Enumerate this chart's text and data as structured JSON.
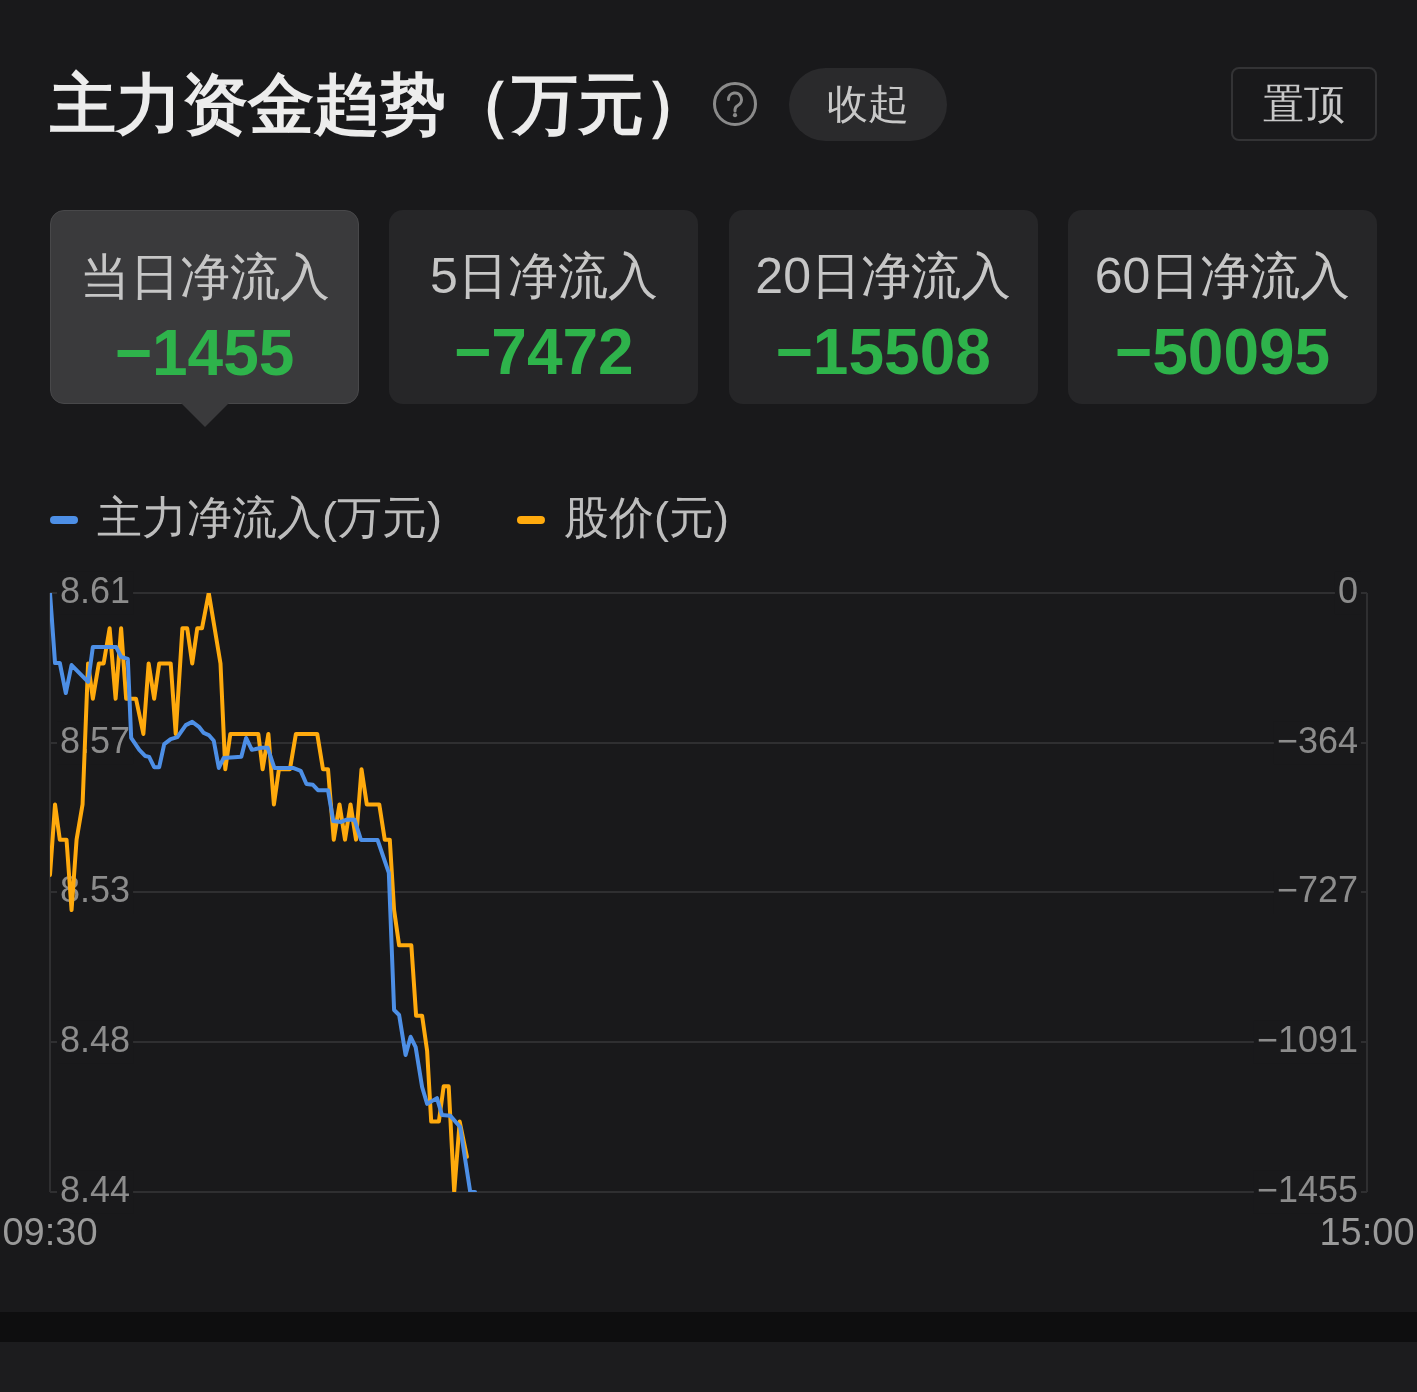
{
  "chart_data": [
    {
      "type": "other",
      "title": "主力资金趋势（万元）",
      "categories": [
        "当日净流入",
        "5日净流入",
        "20日净流入",
        "60日净流入"
      ],
      "values": [
        -1455,
        -7472,
        -15508,
        -50095
      ],
      "data_labels": true,
      "annotations": [
        "收起",
        "置顶"
      ]
    },
    {
      "type": "line",
      "series": [
        {
          "name": "主力净流入(万元)",
          "color": "#4d8fe6",
          "axis": "y2",
          "x": [
            9.5,
            9.521,
            9.541,
            9.566,
            9.59,
            9.659,
            9.679,
            9.776,
            9.797,
            9.825,
            9.839,
            9.873,
            9.898,
            9.914,
            9.935,
            9.956,
            9.977,
            10.004,
            10.032,
            10.067,
            10.094,
            10.122,
            10.142,
            10.163,
            10.184,
            10.205,
            10.225,
            10.299,
            10.319,
            10.343,
            10.384,
            10.409,
            10.437,
            10.515,
            10.547,
            10.571,
            10.598,
            10.619,
            10.661,
            10.683,
            10.716,
            10.736,
            10.772,
            10.799,
            10.868,
            10.915,
            10.937,
            10.958,
            10.985,
            11.006,
            11.027,
            11.054,
            11.075,
            11.116,
            11.137,
            11.172,
            11.213,
            11.255,
            11.275
          ],
          "values": [
            0,
            -170,
            -170,
            -243,
            -175,
            -216,
            -131,
            -131,
            -155,
            -160,
            -352,
            -381,
            -396,
            -398,
            -423,
            -423,
            -367,
            -355,
            -350,
            -321,
            -313,
            -325,
            -340,
            -345,
            -359,
            -425,
            -401,
            -398,
            -352,
            -381,
            -376,
            -376,
            -425,
            -425,
            -432,
            -464,
            -466,
            -479,
            -479,
            -554,
            -556,
            -551,
            -551,
            -600,
            -600,
            -680,
            -1013,
            -1025,
            -1122,
            -1078,
            -1103,
            -1200,
            -1241,
            -1227,
            -1268,
            -1270,
            -1297,
            -1455,
            -1455
          ]
        },
        {
          "name": "股价(元)",
          "color": "#ffaa0d",
          "x": [
            9.5,
            9.521,
            9.541,
            9.569,
            9.59,
            9.611,
            9.636,
            9.659,
            9.679,
            9.704,
            9.724,
            9.749,
            9.774,
            9.797,
            9.818,
            9.859,
            9.89,
            9.912,
            9.935,
            9.956,
            10.004,
            10.025,
            10.053,
            10.073,
            10.094,
            10.115,
            10.135,
            10.163,
            10.212,
            10.232,
            10.253,
            10.37,
            10.388,
            10.412,
            10.435,
            10.456,
            10.502,
            10.527,
            10.616,
            10.64,
            10.661,
            10.685,
            10.709,
            10.732,
            10.755,
            10.778,
            10.801,
            10.823,
            10.875,
            10.898,
            10.919,
            10.937,
            10.958,
            11.009,
            11.029,
            11.054,
            11.075,
            11.092,
            11.124,
            11.144,
            11.165,
            11.188,
            11.211,
            11.241
          ],
          "values": [
            8.53,
            8.55,
            8.54,
            8.54,
            8.52,
            8.54,
            8.55,
            8.59,
            8.58,
            8.59,
            8.59,
            8.6,
            8.58,
            8.6,
            8.58,
            8.58,
            8.57,
            8.59,
            8.58,
            8.59,
            8.59,
            8.57,
            8.6,
            8.6,
            8.59,
            8.6,
            8.6,
            8.61,
            8.59,
            8.56,
            8.57,
            8.57,
            8.56,
            8.57,
            8.55,
            8.56,
            8.56,
            8.57,
            8.57,
            8.56,
            8.56,
            8.54,
            8.55,
            8.54,
            8.55,
            8.54,
            8.56,
            8.55,
            8.55,
            8.54,
            8.54,
            8.52,
            8.51,
            8.51,
            8.49,
            8.49,
            8.48,
            8.46,
            8.46,
            8.47,
            8.47,
            8.44,
            8.46,
            8.45
          ]
        }
      ],
      "xlim": [
        9.5,
        15
      ],
      "xticks": [
        {
          "value": 9.5,
          "label": "09:30"
        },
        {
          "value": 15,
          "label": "15:00"
        }
      ],
      "ylim": [
        8.44,
        8.61
      ],
      "yticks": [
        8.44,
        {
          "value": 8.4825,
          "label": "8.48"
        },
        {
          "value": 8.525,
          "label": "8.53"
        },
        {
          "value": 8.5675,
          "label": "8.57"
        },
        8.61
      ],
      "y2lim": [
        -1455,
        0
      ],
      "y2ticks": [
        -1455,
        {
          "value": -1091.25,
          "label": "−1091"
        },
        {
          "value": -727.5,
          "label": "−727"
        },
        {
          "value": -363.75,
          "label": "−364"
        },
        0
      ],
      "grid": true,
      "legend": "top left"
    }
  ]
}
